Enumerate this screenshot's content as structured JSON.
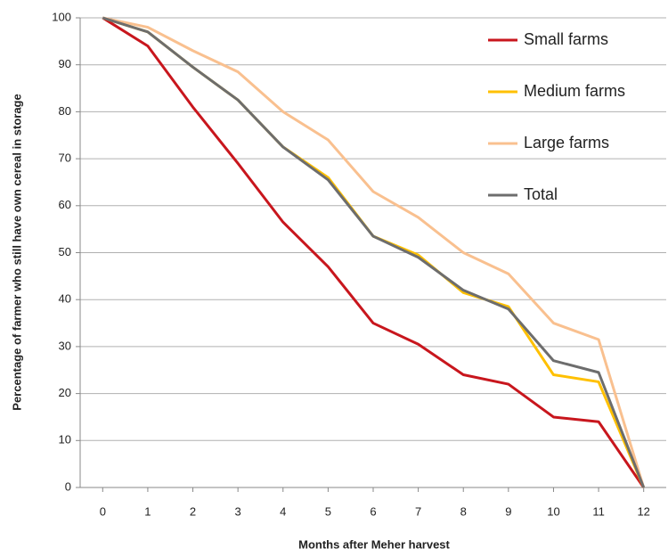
{
  "chart_data": {
    "type": "line",
    "x_label": "Months after Meher harvest",
    "y_label": "Percentage of farmer who still have own cereal in storage",
    "x": [
      0,
      1,
      2,
      3,
      4,
      5,
      6,
      7,
      8,
      9,
      10,
      11,
      12
    ],
    "xlim": [
      -0.5,
      12.5
    ],
    "xticks": [
      0,
      1,
      2,
      3,
      4,
      5,
      6,
      7,
      8,
      9,
      10,
      11,
      12
    ],
    "ylim": [
      0,
      100
    ],
    "yticks": [
      0,
      10,
      20,
      30,
      40,
      50,
      60,
      70,
      80,
      90,
      100
    ],
    "grid": true,
    "legend": "upper right",
    "series": [
      {
        "name": "Small farms",
        "color": "#c8161d",
        "values": [
          100,
          94,
          81,
          69,
          56.5,
          47,
          35,
          30.5,
          24,
          22,
          15,
          14,
          0
        ]
      },
      {
        "name": "Medium farms",
        "color": "#ffc000",
        "values": [
          100,
          97,
          89.5,
          82.5,
          72.5,
          66,
          53.5,
          49.5,
          41.5,
          38.5,
          24,
          22.5,
          0
        ]
      },
      {
        "name": "Large farms",
        "color": "#f9c08f",
        "values": [
          100,
          98,
          93,
          88.5,
          80,
          74,
          63,
          57.5,
          50,
          45.5,
          35,
          31.5,
          0
        ]
      },
      {
        "name": "Total",
        "color": "#6d6d6d",
        "values": [
          100,
          97,
          89.5,
          82.5,
          72.5,
          65.5,
          53.5,
          49,
          42,
          38,
          27,
          24.5,
          0
        ]
      }
    ]
  }
}
